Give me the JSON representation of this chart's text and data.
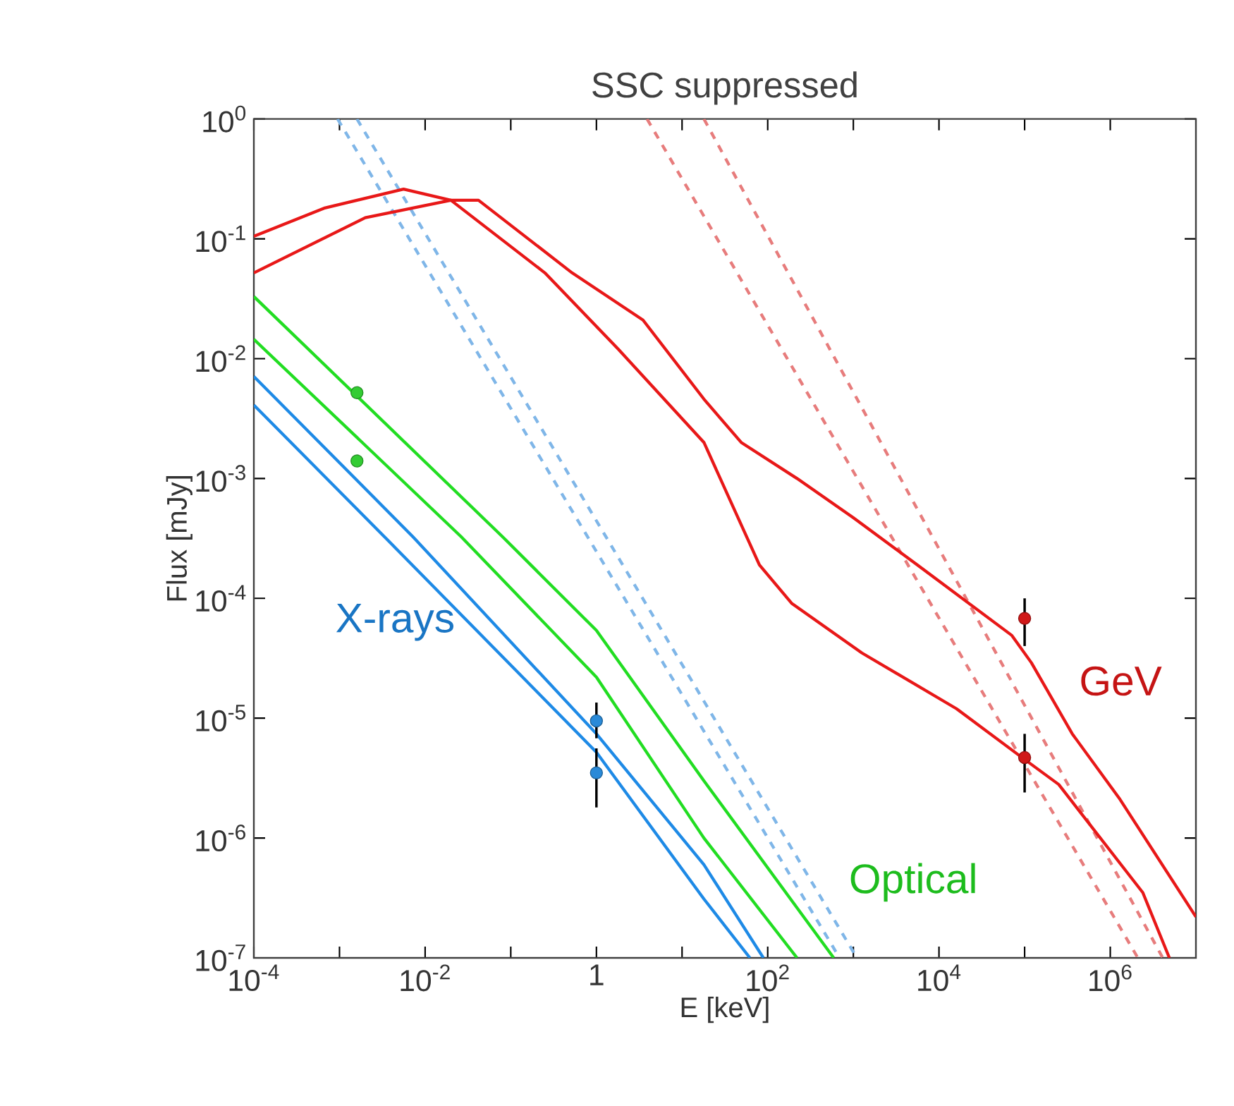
{
  "chart_data": {
    "type": "line",
    "title": "SSC suppressed",
    "xlabel": "E [keV]",
    "ylabel": "Flux [mJy]",
    "log": "xy",
    "xlim": [
      0.0001,
      10000000.0
    ],
    "ylim": [
      1e-07,
      1
    ],
    "xticks": [
      {
        "value": 0.0001,
        "label": "10$^{-4}$"
      },
      {
        "value": 0.001,
        "label": null
      },
      {
        "value": 0.01,
        "label": "10$^{-2}$"
      },
      {
        "value": 0.1,
        "label": null
      },
      {
        "value": 1,
        "label": "1"
      },
      {
        "value": 10,
        "label": null
      },
      {
        "value": 100,
        "label": "10$^{2}$"
      },
      {
        "value": 1000,
        "label": null
      },
      {
        "value": 10000.0,
        "label": "10$^{4}$"
      },
      {
        "value": 100000.0,
        "label": null
      },
      {
        "value": 1000000.0,
        "label": "10$^{6}$"
      }
    ],
    "yticks": [
      {
        "value": 1e-07,
        "label": "10$^{-7}$"
      },
      {
        "value": 1e-06,
        "label": "10$^{-6}$"
      },
      {
        "value": 1e-05,
        "label": "10$^{-5}$"
      },
      {
        "value": 0.0001,
        "label": "10$^{-4}$"
      },
      {
        "value": 0.001,
        "label": "10$^{-3}$"
      },
      {
        "value": 0.01,
        "label": "10$^{-2}$"
      },
      {
        "value": 0.1,
        "label": "10$^{-1}$"
      },
      {
        "value": 1,
        "label": "10$^{0}$"
      }
    ],
    "series": [
      {
        "line_style": "dashed",
        "color": "#7fb6e8",
        "x": [
          0.00095,
          690
        ],
        "values": [
          1,
          1e-07
        ]
      },
      {
        "line_style": "dashed",
        "color": "#7fb6e8",
        "x": [
          0.0016,
          1100
        ],
        "values": [
          1,
          1e-07
        ]
      },
      {
        "line_style": "dashed",
        "color": "#e77c7c",
        "x": [
          3.9,
          2100000.0
        ],
        "values": [
          1,
          1e-07
        ]
      },
      {
        "line_style": "dashed",
        "color": "#e77c7c",
        "x": [
          18,
          4100000.0
        ],
        "values": [
          1,
          1e-07
        ]
      },
      {
        "line_style": "solid",
        "color": "#1e8ae6",
        "x": [
          0.0001,
          0.0033,
          1,
          18,
          62
        ],
        "values": [
          0.0041,
          0.00033,
          5.2e-06,
          3.1e-07,
          1e-07
        ]
      },
      {
        "name": "X-rays",
        "line_style": "solid",
        "color": "#1e8ae6",
        "x": [
          0.0001,
          0.0071,
          1,
          18,
          89
        ],
        "values": [
          0.0071,
          0.00033,
          7.4e-06,
          6e-07,
          1e-07
        ]
      },
      {
        "line_style": "solid",
        "color": "#22dd22",
        "x": [
          0.0001,
          0.026,
          1,
          18,
          220
        ],
        "values": [
          0.0145,
          0.00033,
          2.2e-05,
          1e-06,
          1e-07
        ]
      },
      {
        "name": "Optical",
        "line_style": "solid",
        "color": "#22dd22",
        "x": [
          0.0001,
          0.079,
          1,
          18,
          590
        ],
        "values": [
          0.033,
          0.00033,
          5.4e-05,
          3e-06,
          1e-07
        ]
      },
      {
        "line_style": "solid",
        "color": "#e81818",
        "x": [
          0.0001,
          0.00066,
          0.0056,
          0.02,
          0.25,
          1.8,
          18,
          80,
          190,
          1260,
          16000.0,
          93000.0,
          250000.0,
          2400000.0,
          4900000.0
        ],
        "values": [
          0.105,
          0.18,
          0.26,
          0.21,
          0.052,
          0.012,
          0.002,
          0.00019,
          9.1e-05,
          3.5e-05,
          1.2e-05,
          4.7e-06,
          2.8e-06,
          3.5e-07,
          1e-07
        ]
      },
      {
        "name": "GeV",
        "line_style": "solid",
        "color": "#e81818",
        "x": [
          0.0001,
          0.002,
          0.02,
          0.042,
          0.52,
          3.5,
          18,
          49,
          220,
          1000,
          5600,
          71000.0,
          120000.0,
          360000.0,
          1300000.0,
          10000000.0
        ],
        "values": [
          0.052,
          0.15,
          0.21,
          0.21,
          0.052,
          0.021,
          0.0046,
          0.002,
          0.001,
          0.00047,
          0.00019,
          4.9e-05,
          2.9e-05,
          7.4e-06,
          2.1e-06,
          2.2e-07
        ]
      },
      {
        "type": "scatter",
        "marker": "circle",
        "color": "#33cc33",
        "x": [
          0.0016,
          0.0016
        ],
        "values": [
          0.0052,
          0.0014
        ]
      },
      {
        "type": "scatter",
        "marker": "circle",
        "color": "#2a8ad8",
        "x": [
          1,
          1
        ],
        "values": [
          9.5e-06,
          3.5e-06
        ],
        "errors": [
          [
            6.8e-06,
            1.35e-05
          ],
          [
            1.8e-06,
            5.6e-06
          ]
        ]
      },
      {
        "type": "scatter",
        "marker": "circle",
        "color": "#d01818",
        "x": [
          100000.0,
          100000.0
        ],
        "values": [
          6.8e-05,
          4.7e-06
        ],
        "errors": [
          [
            4e-05,
            0.0001
          ],
          [
            2.4e-06,
            7.4e-06
          ]
        ]
      }
    ]
  }
}
